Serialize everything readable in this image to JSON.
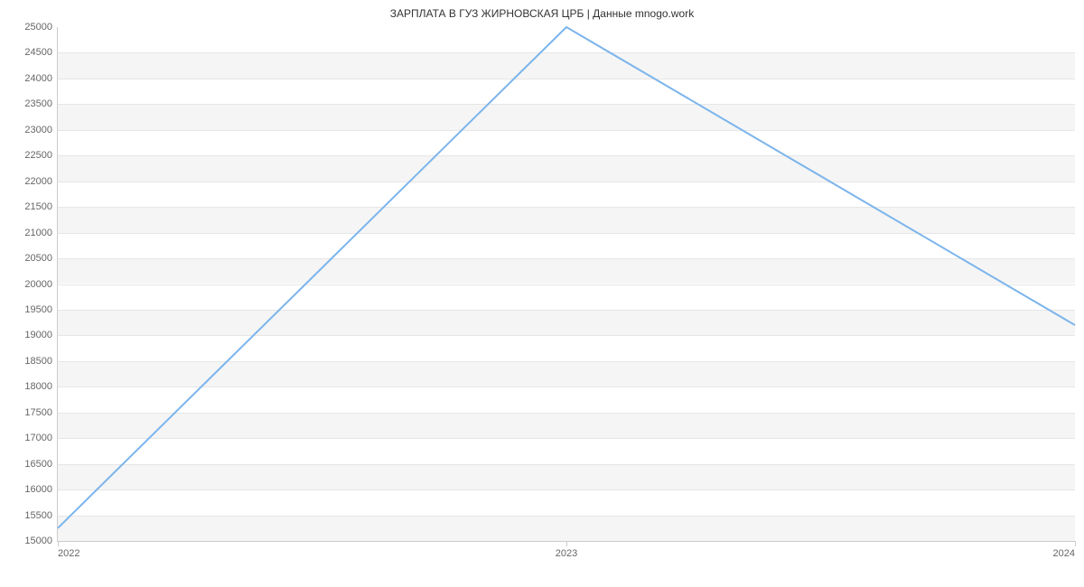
{
  "chart": {
    "type": "line",
    "title": "ЗАРПЛАТА В ГУЗ ЖИРНОВСКАЯ ЦРБ | Данные mnogo.work",
    "title_fontsize": 12,
    "title_color": "#333333",
    "background_color": "#ffffff",
    "plot_band_color": "#f5f5f5",
    "grid_line_color": "#e6e6e6",
    "axis_line_color": "#cccccc",
    "tick_label_color": "#666666",
    "tick_fontsize": 11,
    "line_color": "#7cb5ec",
    "line_width": 2,
    "x": {
      "categories": [
        "2022",
        "2023",
        "2024"
      ],
      "positions_pct": [
        0,
        50,
        100
      ]
    },
    "y": {
      "min": 15000,
      "max": 25000,
      "ticks": [
        15000,
        15500,
        16000,
        16500,
        17000,
        17500,
        18000,
        18500,
        19000,
        19500,
        20000,
        20500,
        21000,
        21500,
        22000,
        22500,
        23000,
        23500,
        24000,
        24500,
        25000
      ]
    },
    "series": {
      "x_pct": [
        0,
        50,
        100
      ],
      "y_values": [
        15250,
        25000,
        19200
      ]
    }
  }
}
